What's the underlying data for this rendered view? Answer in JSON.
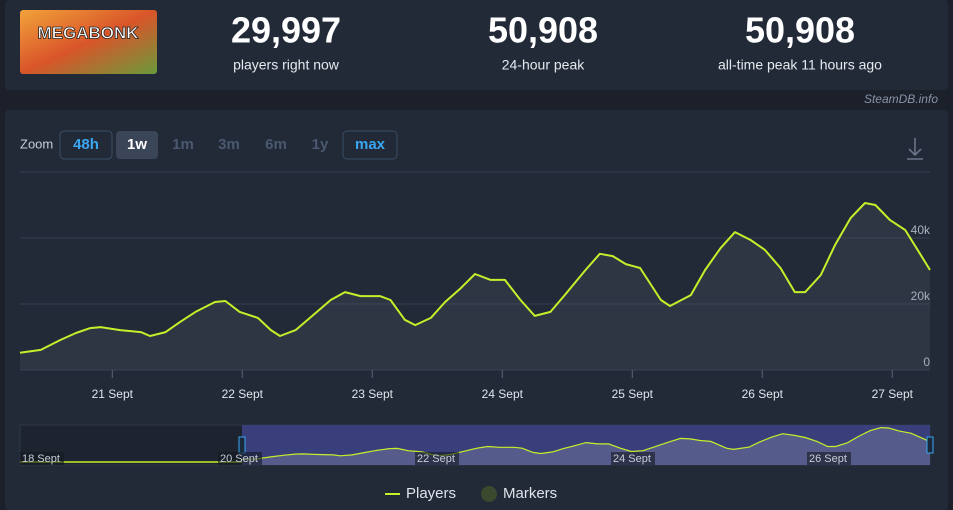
{
  "header": {
    "logo_text": "MEGABONK",
    "stats": [
      {
        "value": "29,997",
        "label": "players right now"
      },
      {
        "value": "50,908",
        "label": "24-hour peak"
      },
      {
        "value": "50,908",
        "label": "all-time peak 11 hours ago"
      }
    ],
    "credit": "SteamDB.info"
  },
  "zoom": {
    "label": "Zoom",
    "buttons": [
      "48h",
      "1w",
      "1m",
      "3m",
      "6m",
      "1y",
      "max"
    ]
  },
  "chart_data": {
    "type": "line",
    "x": [
      20.29,
      20.45,
      20.6,
      20.72,
      20.83,
      20.91,
      21.06,
      21.22,
      21.29,
      21.41,
      21.52,
      21.64,
      21.79,
      21.87,
      21.98,
      22.12,
      22.22,
      22.29,
      22.41,
      22.52,
      22.68,
      22.79,
      22.91,
      23.06,
      23.14,
      23.25,
      23.33,
      23.45,
      23.56,
      23.68,
      23.79,
      23.91,
      24.02,
      24.14,
      24.25,
      24.37,
      24.48,
      24.64,
      24.75,
      24.85,
      24.95,
      25.06,
      25.22,
      25.29,
      25.45,
      25.56,
      25.68,
      25.79,
      25.91,
      26.02,
      26.14,
      26.25,
      26.33,
      26.45,
      26.56,
      26.68,
      26.79,
      26.87,
      26.98,
      27.1,
      27.22,
      27.29
    ],
    "series": [
      {
        "name": "Players",
        "color": "#c6ef2a",
        "values": [
          5200,
          6100,
          9100,
          11200,
          12700,
          13000,
          12100,
          11500,
          10300,
          11500,
          14500,
          17600,
          20600,
          20900,
          17600,
          15800,
          12100,
          10300,
          12100,
          15800,
          21200,
          23600,
          22400,
          22400,
          21200,
          15200,
          13600,
          15800,
          20600,
          24800,
          29100,
          27300,
          27300,
          21200,
          16400,
          17600,
          22700,
          30300,
          35200,
          34500,
          32100,
          30900,
          21200,
          19400,
          22700,
          30300,
          37000,
          41800,
          39400,
          36400,
          30900,
          23600,
          23600,
          28800,
          37900,
          46100,
          50600,
          50000,
          45500,
          42400,
          34800,
          30300
        ]
      }
    ],
    "xlim": [
      20.29,
      27.29
    ],
    "xticks": [
      {
        "value": 21,
        "label": "21 Sept"
      },
      {
        "value": 22,
        "label": "22 Sept"
      },
      {
        "value": 23,
        "label": "23 Sept"
      },
      {
        "value": 24,
        "label": "24 Sept"
      },
      {
        "value": 25,
        "label": "25 Sept"
      },
      {
        "value": 26,
        "label": "26 Sept"
      },
      {
        "value": 27,
        "label": "27 Sept"
      }
    ],
    "ylim": [
      0,
      60000
    ],
    "yticks": [
      0,
      {
        "value": 20000,
        "label": "20k"
      },
      {
        "value": 40000,
        "label": "40k"
      }
    ],
    "grid": true,
    "legend": [
      "Players",
      "Markers"
    ]
  },
  "navigator": {
    "labels": [
      "18 Sept",
      "20 Sept",
      "22 Sept",
      "24 Sept",
      "26 Sept"
    ]
  }
}
